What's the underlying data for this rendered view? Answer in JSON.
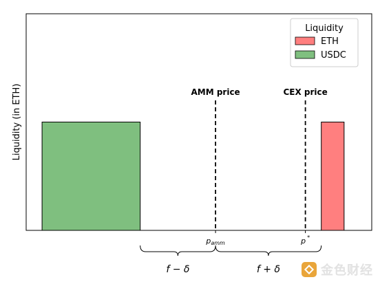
{
  "chart_data": {
    "type": "bar",
    "title": "",
    "xlabel": "",
    "ylabel": "Liquidity (in ETH)",
    "ylim": [
      0,
      1
    ],
    "xlim": [
      0,
      1
    ],
    "grid": false,
    "legend": {
      "title": "Liquidity",
      "placement": "top-right",
      "entries": [
        {
          "label": "ETH",
          "color": "#ff7f7f"
        },
        {
          "label": "USDC",
          "color": "#7fbf7f"
        }
      ]
    },
    "series": [
      {
        "name": "USDC",
        "color": "#7fbf7f",
        "bars": [
          {
            "x_start": 0.046,
            "x_end": 0.33,
            "height": 0.5
          }
        ]
      },
      {
        "name": "ETH",
        "color": "#ff7f7f",
        "bars": [
          {
            "x_start": 0.854,
            "x_end": 0.92,
            "height": 0.5
          }
        ]
      }
    ],
    "reference_lines": [
      {
        "x": 0.548,
        "label": "AMM price",
        "tick_label": "p_amm",
        "tick_main": "p",
        "tick_sub": "amm"
      },
      {
        "x": 0.808,
        "label": "CEX price",
        "tick_label": "p*",
        "tick_main": "p",
        "tick_sup": "*"
      }
    ],
    "braces": [
      {
        "x_start": 0.33,
        "x_end": 0.548,
        "label": "f − δ"
      },
      {
        "x_start": 0.548,
        "x_end": 0.854,
        "label": "f + δ"
      }
    ]
  },
  "watermark": {
    "text": "金色财经"
  }
}
